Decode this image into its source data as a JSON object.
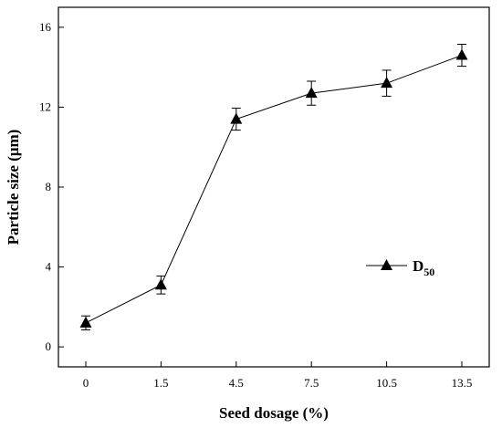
{
  "chart_data": {
    "type": "line",
    "xlabel": "Seed dosage (%)",
    "ylabel": "Particle size (μm)",
    "categories": [
      "0",
      "1.5",
      "4.5",
      "7.5",
      "10.5",
      "13.5"
    ],
    "ylim": [
      -1,
      17
    ],
    "yticks": [
      0,
      4,
      8,
      12,
      16
    ],
    "yticks_labels": [
      "0",
      "4",
      "8",
      "12",
      "16"
    ],
    "series": [
      {
        "name": "D",
        "name_subscript": "50",
        "values": [
          1.2,
          3.1,
          11.4,
          12.7,
          13.2,
          14.6
        ],
        "errors": [
          0.35,
          0.45,
          0.55,
          0.6,
          0.65,
          0.55
        ],
        "marker": "triangle",
        "color": "#000000"
      }
    ],
    "legend_position": "right",
    "grid": false
  }
}
